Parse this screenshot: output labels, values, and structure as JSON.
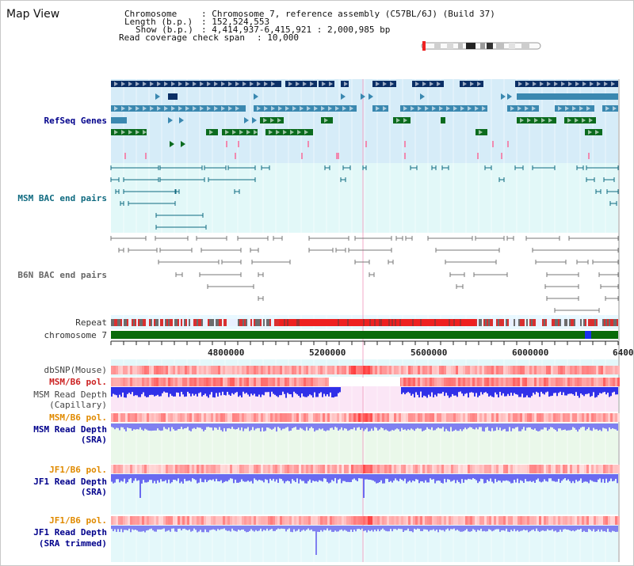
{
  "page": {
    "title": "Map View"
  },
  "info": {
    "chromosome_key": "Chromosome",
    "chromosome_val": ": Chromosome 7, reference assembly (C57BL/6J) (Build 37)",
    "length_key": "Length (b.p.)",
    "length_val": ": 152,524,553",
    "show_key": "Show (b.p.)",
    "show_val": ": 4,414,937-6,415,921 : 2,000,985 bp",
    "span_key": "Read coverage check span",
    "span_val": ": 10,000"
  },
  "tracks": {
    "refseq": "RefSeq Genes",
    "msm_bac": "MSM BAC end pairs",
    "b6n_bac": "B6N BAC end pairs",
    "repeat": "Repeat",
    "chromosome": "chromosome 7",
    "dbsnp": "dbSNP(Mouse)",
    "msm_b6_pol_1": "MSM/B6 pol.",
    "msm_read_depth_cap": "MSM Read Depth",
    "capillary": "(Capillary)",
    "msm_b6_pol_2": "MSM/B6 pol.",
    "msm_read_depth_sra": "MSM Read Depth",
    "sra_1": "(SRA)",
    "jf1_b6_pol_1": "JF1/B6 pol.",
    "jf1_read_depth": "JF1 Read Depth",
    "sra_2": "(SRA)",
    "jf1_b6_pol_2": "JF1/B6 pol.",
    "jf1_read_depth_trim": "JF1 Read Depth",
    "sra_trimmed": "(SRA trimmed)"
  },
  "axis": {
    "ticks": [
      "4800000",
      "5200000",
      "5600000",
      "6000000",
      "6400"
    ]
  },
  "colors": {
    "refseq_bg": "#d6ecf8",
    "bac_bg": "#e2f8f8",
    "gene_dark": "#0b2f66",
    "gene_mid": "#3a88b0",
    "gene_green": "#0b6b1e",
    "chromosome_bar": "#0a6a0a",
    "depth_blue": "#3030e0",
    "label_blue": "#00008b",
    "label_orange": "#e08a00",
    "label_red": "#cc2222",
    "msm_teal": "#0f6a80"
  }
}
